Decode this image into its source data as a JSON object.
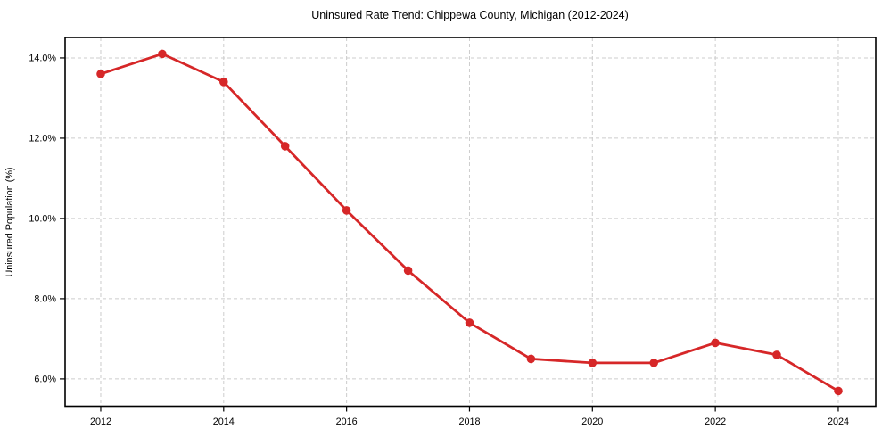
{
  "chart_data": {
    "type": "line",
    "title": "Uninsured Rate Trend: Chippewa County, Michigan (2012-2024)",
    "xlabel": "",
    "ylabel": "Uninsured Population (%)",
    "x": [
      2012,
      2013,
      2014,
      2015,
      2016,
      2017,
      2018,
      2019,
      2020,
      2021,
      2022,
      2023,
      2024
    ],
    "values": [
      13.6,
      14.1,
      13.4,
      11.8,
      10.2,
      8.7,
      7.4,
      6.5,
      6.4,
      6.4,
      6.9,
      6.6,
      5.7
    ],
    "x_ticks": [
      2012,
      2014,
      2016,
      2018,
      2020,
      2022,
      2024
    ],
    "x_tick_labels": [
      "2012",
      "2014",
      "2016",
      "2018",
      "2020",
      "2022",
      "2024"
    ],
    "y_ticks": [
      6.0,
      8.0,
      10.0,
      12.0,
      14.0
    ],
    "y_tick_labels": [
      "6.0%",
      "8.0%",
      "10.0%",
      "12.0%",
      "14.0%"
    ],
    "xlim": [
      2011.42,
      2024.61
    ],
    "ylim": [
      5.32,
      14.51
    ],
    "grid": true,
    "legend": "none",
    "line_color": "#d62728",
    "marker": "circle",
    "grid_color": "#cccccc",
    "spine_color": "#000000",
    "background_color": "#ffffff"
  }
}
